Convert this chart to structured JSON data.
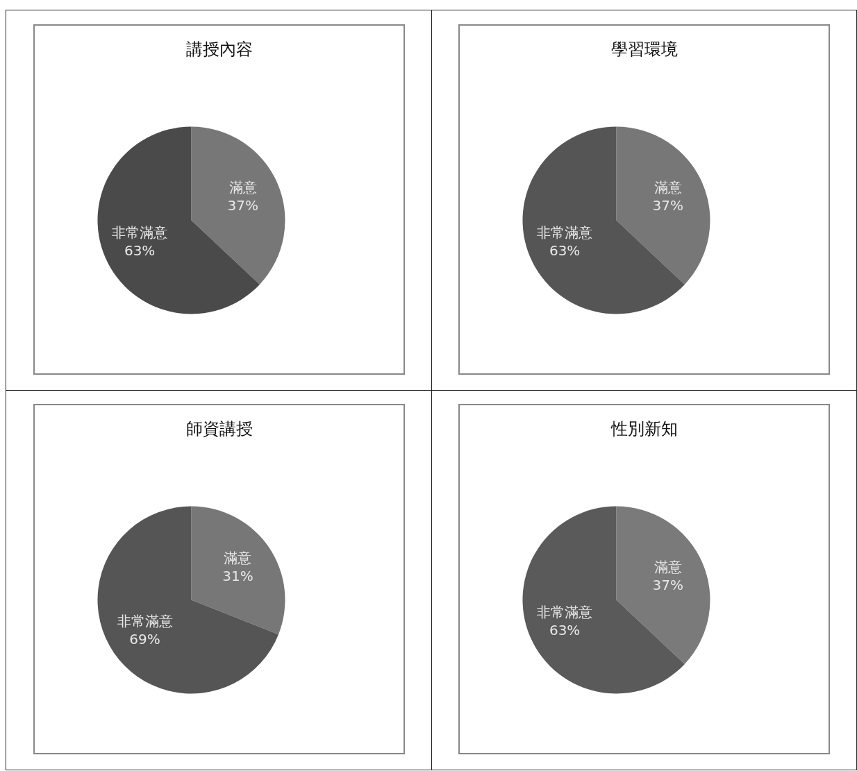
{
  "chart_data": [
    {
      "type": "pie",
      "title": "講授內容",
      "categories": [
        "滿意",
        "非常滿意"
      ],
      "values": [
        37,
        63
      ],
      "colors": [
        "#777777",
        "#4a4a4a"
      ],
      "value_labels": [
        "37%",
        "63%"
      ]
    },
    {
      "type": "pie",
      "title": "學習環境",
      "categories": [
        "滿意",
        "非常滿意"
      ],
      "values": [
        37,
        63
      ],
      "colors": [
        "#777777",
        "#555555"
      ],
      "value_labels": [
        "37%",
        "63%"
      ]
    },
    {
      "type": "pie",
      "title": "師資講授",
      "categories": [
        "滿意",
        "非常滿意"
      ],
      "values": [
        31,
        69
      ],
      "colors": [
        "#777777",
        "#555555"
      ],
      "value_labels": [
        "31%",
        "69%"
      ]
    },
    {
      "type": "pie",
      "title": "性別新知",
      "categories": [
        "滿意",
        "非常滿意"
      ],
      "values": [
        37,
        63
      ],
      "colors": [
        "#7a7a7a",
        "#5a5a5a"
      ],
      "value_labels": [
        "37%",
        "63%"
      ]
    }
  ]
}
